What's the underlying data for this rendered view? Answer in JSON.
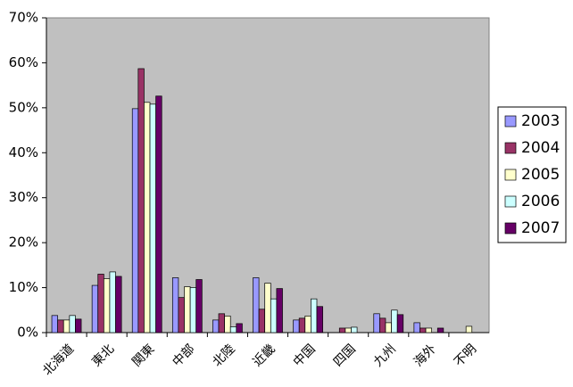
{
  "chart_data": {
    "type": "bar",
    "categories": [
      "北海道",
      "東北",
      "関東",
      "中部",
      "北陸",
      "近畿",
      "中国",
      "四国",
      "九州",
      "海外",
      "不明"
    ],
    "series": [
      {
        "name": "2003",
        "color": "#9999ff",
        "values": [
          3.8,
          10.5,
          49.8,
          12.2,
          2.8,
          12.2,
          2.8,
          0,
          4.2,
          2.2,
          0
        ]
      },
      {
        "name": "2004",
        "color": "#993366",
        "values": [
          2.8,
          13.0,
          58.7,
          7.8,
          4.2,
          5.2,
          3.2,
          1.0,
          3.2,
          1.0,
          0
        ]
      },
      {
        "name": "2005",
        "color": "#ffffcc",
        "values": [
          2.8,
          12.0,
          51.2,
          10.2,
          3.7,
          11.0,
          3.7,
          1.0,
          2.2,
          1.0,
          1.4
        ]
      },
      {
        "name": "2006",
        "color": "#ccffff",
        "values": [
          3.8,
          13.5,
          50.8,
          10.0,
          1.3,
          7.5,
          7.5,
          1.2,
          5.0,
          0,
          0
        ]
      },
      {
        "name": "2007",
        "color": "#660066",
        "values": [
          3.0,
          12.5,
          52.6,
          11.8,
          2.0,
          9.8,
          5.8,
          0,
          4.0,
          1.0,
          0
        ]
      }
    ],
    "ylim": [
      0,
      70
    ],
    "yticks": [
      {
        "value": 0,
        "label": "0%"
      },
      {
        "value": 10,
        "label": "10%"
      },
      {
        "value": 20,
        "label": "20%"
      },
      {
        "value": 30,
        "label": "30%"
      },
      {
        "value": 40,
        "label": "40%"
      },
      {
        "value": 50,
        "label": "50%"
      },
      {
        "value": 60,
        "label": "60%"
      },
      {
        "value": 70,
        "label": "70%"
      }
    ],
    "plot_background": "#c0c0c0",
    "legend": "right"
  }
}
